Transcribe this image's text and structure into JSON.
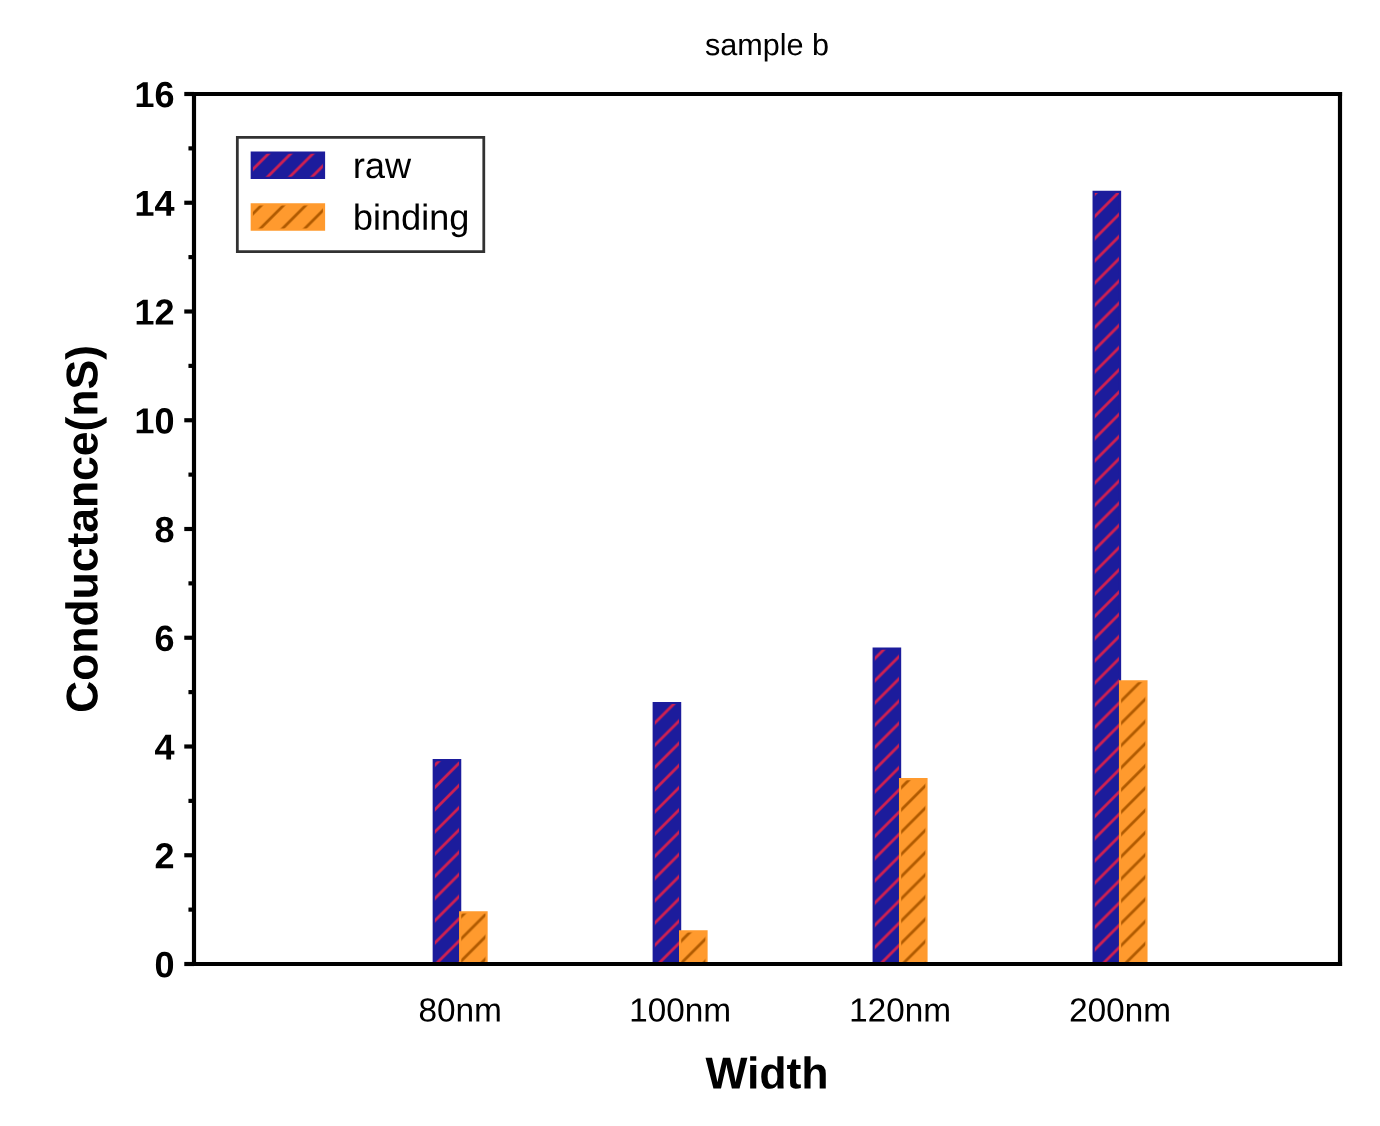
{
  "chart_data": {
    "type": "bar",
    "title": "sample b",
    "xlabel": "Width",
    "ylabel": "Conductance(nS)",
    "categories": [
      "80nm",
      "100nm",
      "120nm",
      "200nm"
    ],
    "series": [
      {
        "name": "raw",
        "color": "#1c1c9c",
        "values": [
          3.75,
          4.8,
          5.8,
          14.2
        ]
      },
      {
        "name": "binding",
        "color": "#ff9a2e",
        "values": [
          0.95,
          0.6,
          3.4,
          5.2
        ]
      }
    ],
    "ylim": [
      0,
      16
    ],
    "yticks": [
      0,
      2,
      4,
      6,
      8,
      10,
      12,
      14,
      16
    ],
    "grid": false,
    "legend": "top left"
  }
}
